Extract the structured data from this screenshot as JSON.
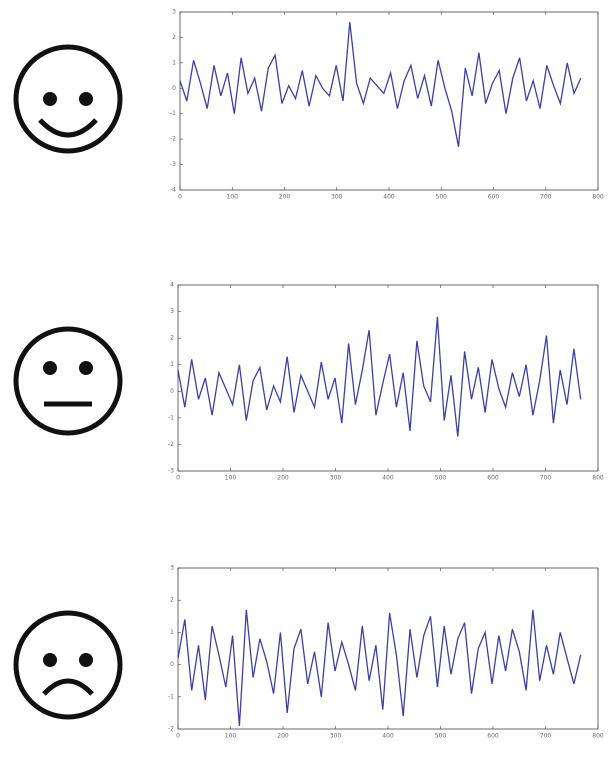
{
  "chart_data": [
    {
      "type": "line",
      "color": "#3b40a6",
      "x": [
        0,
        13,
        26,
        39,
        52,
        65,
        78,
        91,
        104,
        117,
        130,
        143,
        156,
        169,
        182,
        195,
        208,
        221,
        234,
        247,
        260,
        273,
        286,
        299,
        312,
        325,
        338,
        351,
        364,
        377,
        390,
        403,
        416,
        429,
        442,
        455,
        468,
        481,
        494,
        507,
        520,
        533,
        546,
        559,
        572,
        585,
        598,
        611,
        624,
        637,
        650,
        663,
        676,
        689,
        702,
        715,
        728,
        741,
        754,
        767
      ],
      "series": [
        {
          "color": "#3b40a6",
          "values": [
            0.3,
            -0.5,
            1.1,
            0.2,
            -0.8,
            0.9,
            -0.3,
            0.6,
            -1.0,
            1.2,
            -0.2,
            0.4,
            -0.9,
            0.8,
            1.3,
            -0.6,
            0.1,
            -0.4,
            0.7,
            -0.7,
            0.5,
            0.0,
            -0.3,
            0.9,
            -0.5,
            2.6,
            0.2,
            -0.6,
            0.4,
            0.1,
            -0.2,
            0.6,
            -0.8,
            0.3,
            0.9,
            -0.4,
            0.5,
            -0.7,
            1.1,
            0.0,
            -0.9,
            -2.3,
            0.8,
            -0.3,
            1.4,
            -0.6,
            0.2,
            0.7,
            -1.0,
            0.4,
            1.2,
            -0.5,
            0.3,
            -0.8,
            0.9,
            0.1,
            -0.6,
            1.0,
            -0.2,
            0.4
          ]
        }
      ],
      "xlim": [
        0,
        800
      ],
      "xticks": [
        0,
        100,
        200,
        300,
        400,
        500,
        600,
        700,
        800
      ],
      "ylim": [
        -4,
        3
      ],
      "yticks": [
        -4,
        -3,
        -2,
        -1,
        0,
        1,
        2,
        3
      ]
    },
    {
      "type": "line",
      "color": "#3b40a6",
      "x": [
        0,
        13,
        26,
        39,
        52,
        65,
        78,
        91,
        104,
        117,
        130,
        143,
        156,
        169,
        182,
        195,
        208,
        221,
        234,
        247,
        260,
        273,
        286,
        299,
        312,
        325,
        338,
        351,
        364,
        377,
        390,
        403,
        416,
        429,
        442,
        455,
        468,
        481,
        494,
        507,
        520,
        533,
        546,
        559,
        572,
        585,
        598,
        611,
        624,
        637,
        650,
        663,
        676,
        689,
        702,
        715,
        728,
        741,
        754,
        767
      ],
      "series": [
        {
          "color": "#3b40a6",
          "values": [
            0.8,
            -0.6,
            1.2,
            -0.3,
            0.5,
            -0.9,
            0.7,
            0.1,
            -0.5,
            1.0,
            -1.1,
            0.4,
            0.9,
            -0.7,
            0.2,
            -0.4,
            1.3,
            -0.8,
            0.6,
            0.0,
            -0.6,
            1.1,
            -0.3,
            0.5,
            -1.2,
            1.8,
            -0.5,
            0.8,
            2.3,
            -0.9,
            0.3,
            1.4,
            -0.6,
            0.7,
            -1.5,
            1.9,
            0.2,
            -0.4,
            2.8,
            -1.1,
            0.6,
            -1.7,
            1.5,
            -0.3,
            0.9,
            -0.8,
            1.2,
            0.1,
            -0.6,
            0.7,
            -0.2,
            1.0,
            -0.9,
            0.4,
            2.1,
            -1.2,
            0.8,
            -0.5,
            1.6,
            -0.3
          ]
        }
      ],
      "xlim": [
        0,
        800
      ],
      "xticks": [
        0,
        100,
        200,
        300,
        400,
        500,
        600,
        700,
        800
      ],
      "ylim": [
        -3,
        4
      ],
      "yticks": [
        -3,
        -2,
        -1,
        0,
        1,
        2,
        3,
        4
      ]
    },
    {
      "type": "line",
      "color": "#3b40a6",
      "x": [
        0,
        13,
        26,
        39,
        52,
        65,
        78,
        91,
        104,
        117,
        130,
        143,
        156,
        169,
        182,
        195,
        208,
        221,
        234,
        247,
        260,
        273,
        286,
        299,
        312,
        325,
        338,
        351,
        364,
        377,
        390,
        403,
        416,
        429,
        442,
        455,
        468,
        481,
        494,
        507,
        520,
        533,
        546,
        559,
        572,
        585,
        598,
        611,
        624,
        637,
        650,
        663,
        676,
        689,
        702,
        715,
        728,
        741,
        754,
        767
      ],
      "series": [
        {
          "color": "#3b40a6",
          "values": [
            0.2,
            1.4,
            -0.8,
            0.6,
            -1.1,
            1.2,
            0.3,
            -0.7,
            0.9,
            -1.9,
            1.7,
            -0.4,
            0.8,
            0.1,
            -0.9,
            1.0,
            -1.5,
            0.5,
            1.1,
            -0.6,
            0.4,
            -1.0,
            1.3,
            -0.2,
            0.7,
            0.0,
            -0.8,
            1.2,
            -0.5,
            0.6,
            -1.4,
            1.6,
            0.3,
            -1.6,
            1.1,
            -0.4,
            0.9,
            1.5,
            -0.7,
            1.2,
            -0.3,
            0.8,
            1.3,
            -0.9,
            0.5,
            1.0,
            -0.6,
            0.9,
            -0.2,
            1.1,
            0.4,
            -0.8,
            1.7,
            -0.5,
            0.6,
            -0.3,
            1.0,
            0.2,
            -0.6,
            0.3
          ]
        }
      ],
      "xlim": [
        0,
        800
      ],
      "xticks": [
        0,
        100,
        200,
        300,
        400,
        500,
        600,
        700,
        800
      ],
      "ylim": [
        -2,
        3
      ],
      "yticks": [
        -2,
        -1,
        0,
        1,
        2,
        3
      ]
    }
  ]
}
